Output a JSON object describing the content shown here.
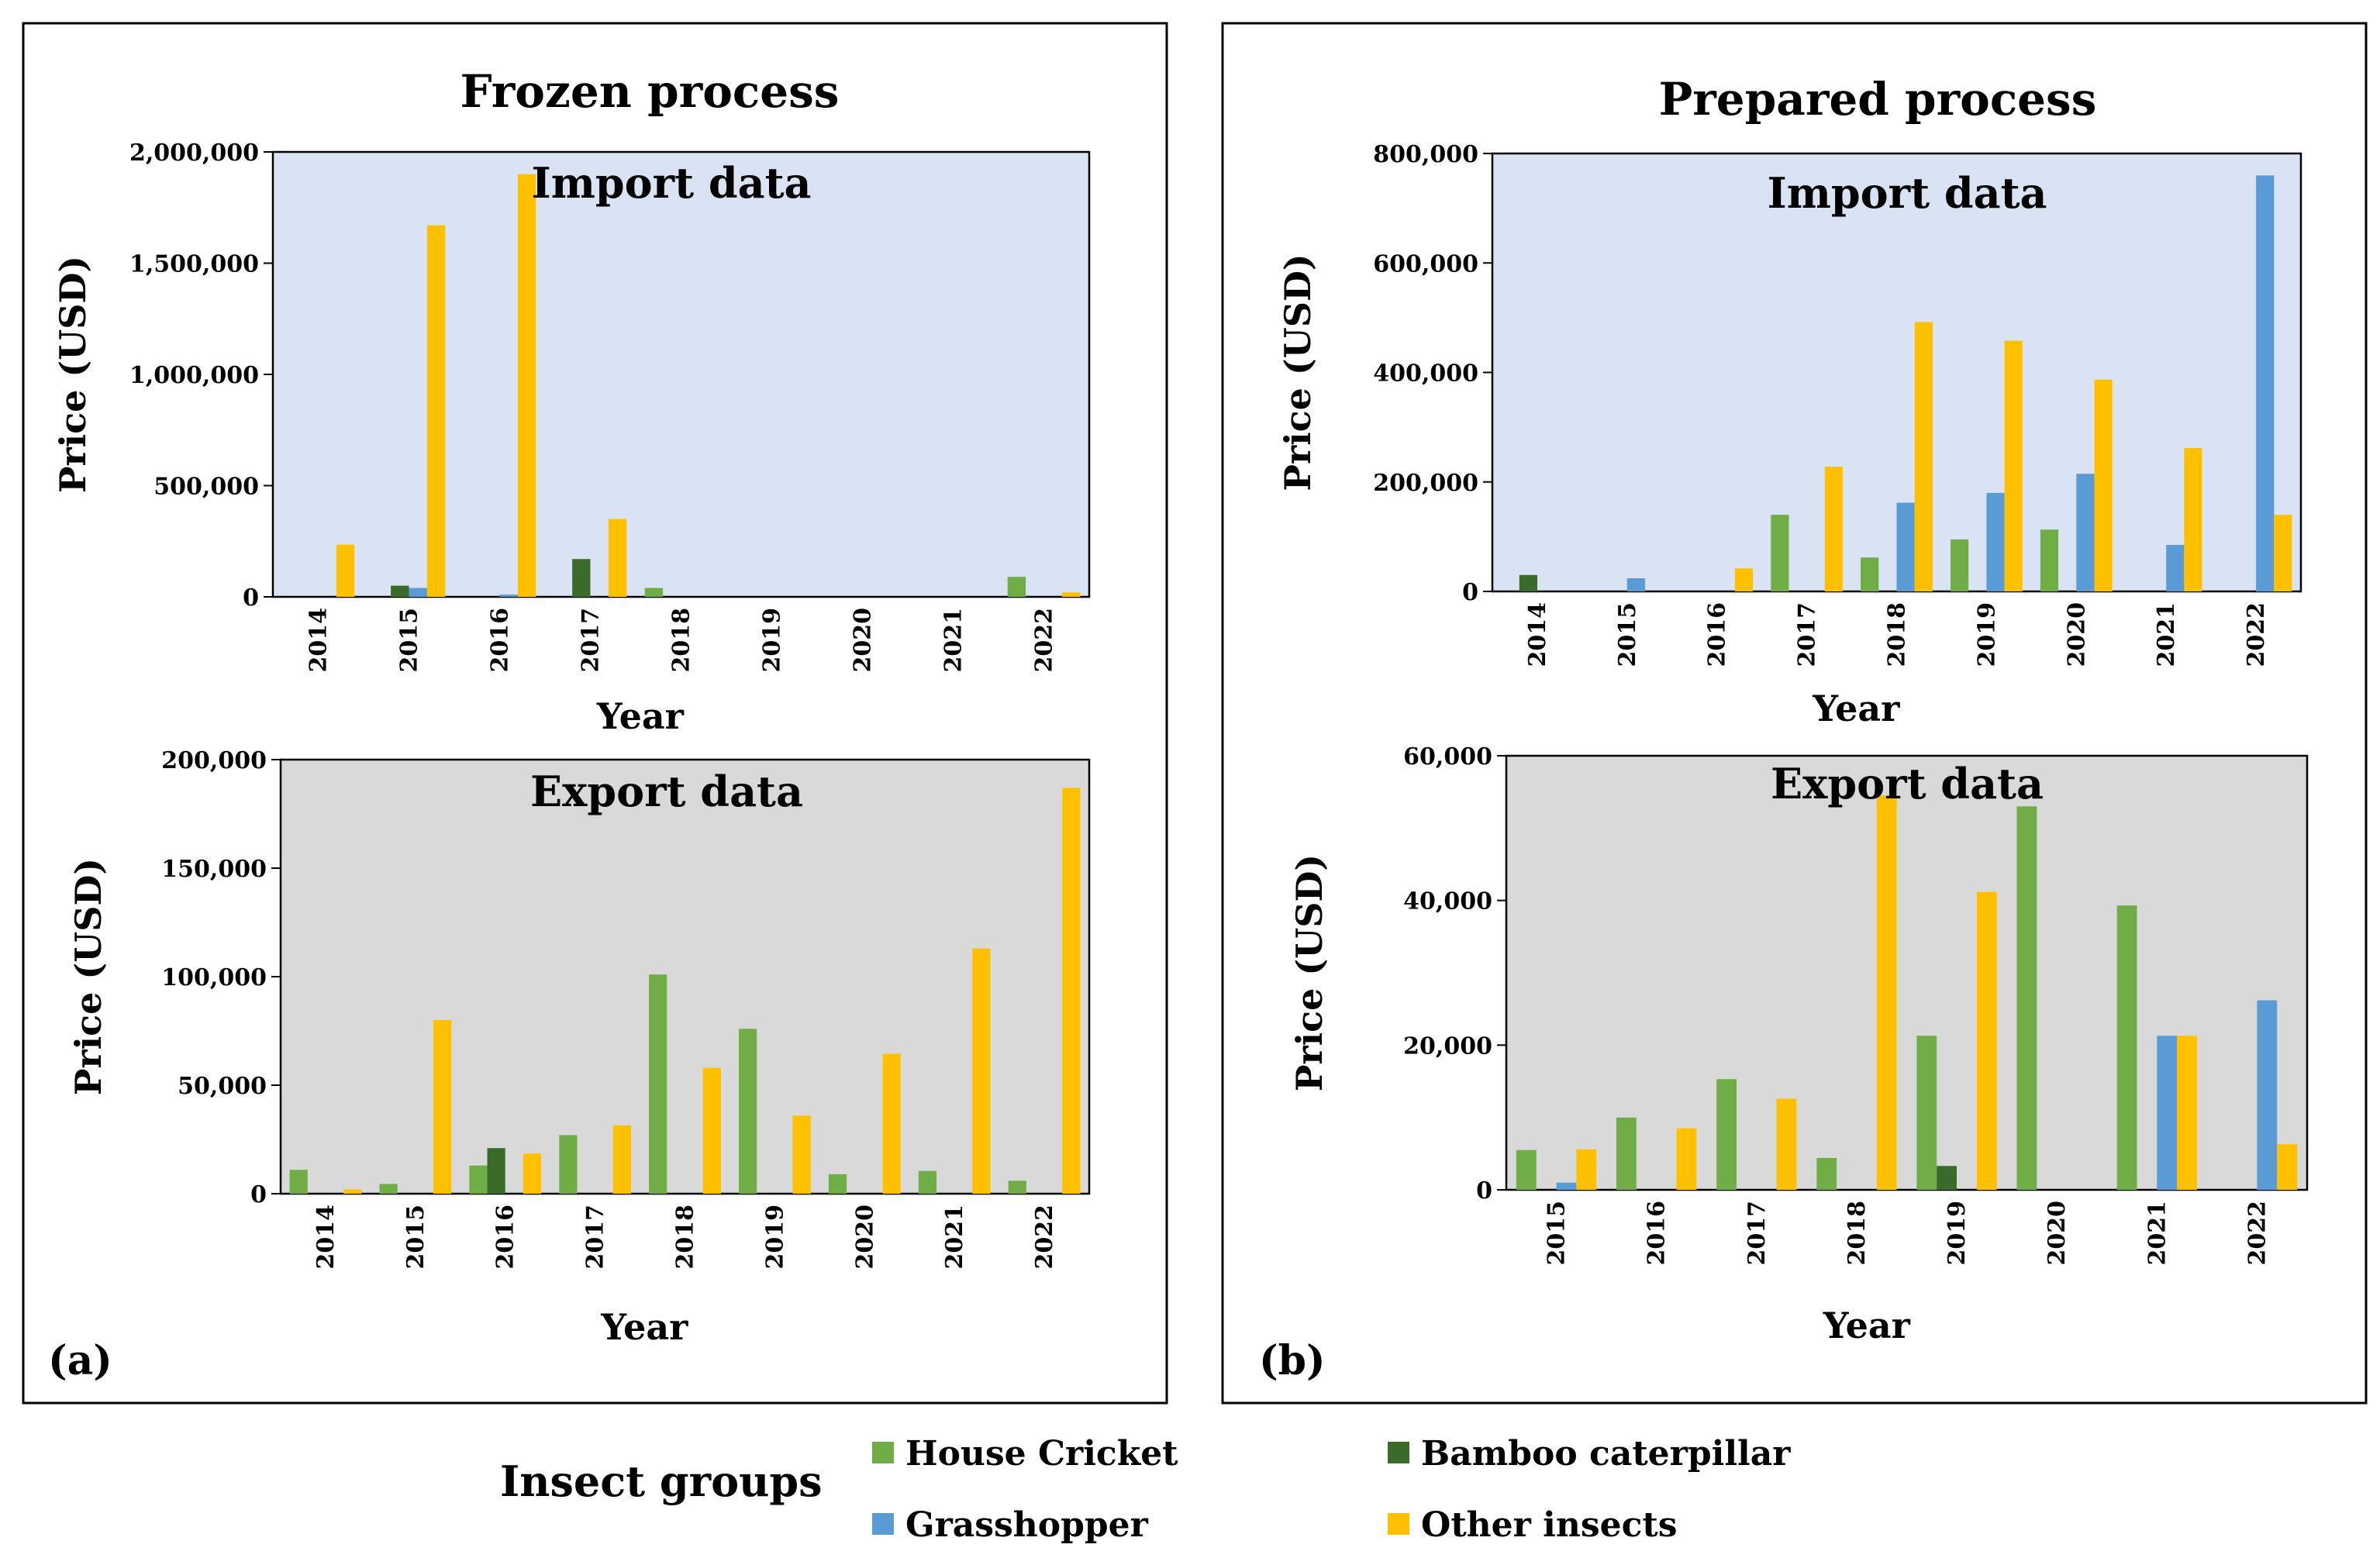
{
  "figure": {
    "panel_a": {
      "title": "Frozen process",
      "label": "(a)"
    },
    "panel_b": {
      "title": "Prepared process",
      "label": "(b)"
    },
    "legend": {
      "title": "Insect groups",
      "items": [
        {
          "key": "house_cricket",
          "label": "House Cricket",
          "color": "#70AD47"
        },
        {
          "key": "bamboo_caterpillar",
          "label": "Bamboo caterpillar",
          "color": "#3B6B2A"
        },
        {
          "key": "grasshopper",
          "label": "Grasshopper",
          "color": "#5B9BD5"
        },
        {
          "key": "other_insects",
          "label": "Other insects",
          "color": "#FFC000"
        }
      ]
    },
    "colors": {
      "import_bg": "#DAE3F3",
      "export_bg": "#D9D9D9"
    }
  },
  "chart_data": [
    {
      "id": "a-import",
      "type": "bar",
      "panel": "(a)",
      "title": "Import data",
      "xlabel": "Year",
      "ylabel": "Price (USD)",
      "ylim": [
        0,
        2000000
      ],
      "yticks": [
        0,
        500000,
        1000000,
        1500000,
        2000000
      ],
      "ytick_labels": [
        "0",
        "500,000",
        "1,000,000",
        "1,500,000",
        "2,000,000"
      ],
      "categories": [
        "2014",
        "2015",
        "2016",
        "2017",
        "2018",
        "2019",
        "2020",
        "2021",
        "2022"
      ],
      "series": [
        {
          "name": "House Cricket",
          "values": [
            0,
            0,
            0,
            0,
            40000,
            0,
            0,
            0,
            90000
          ]
        },
        {
          "name": "Bamboo caterpillar",
          "values": [
            0,
            50000,
            0,
            170000,
            0,
            0,
            0,
            0,
            0
          ]
        },
        {
          "name": "Grasshopper",
          "values": [
            0,
            40000,
            10000,
            0,
            0,
            0,
            0,
            0,
            0
          ]
        },
        {
          "name": "Other insects",
          "values": [
            235000,
            1670000,
            1900000,
            350000,
            0,
            0,
            0,
            0,
            20000
          ]
        }
      ]
    },
    {
      "id": "a-export",
      "type": "bar",
      "panel": "(a)",
      "title": "Export data",
      "xlabel": "Year",
      "ylabel": "Price (USD)",
      "ylim": [
        0,
        200000
      ],
      "yticks": [
        0,
        50000,
        100000,
        150000,
        200000
      ],
      "ytick_labels": [
        "0",
        "50,000",
        "100,000",
        "150,000",
        "200,000"
      ],
      "categories": [
        "2014",
        "2015",
        "2016",
        "2017",
        "2018",
        "2019",
        "2020",
        "2021",
        "2022"
      ],
      "series": [
        {
          "name": "House Cricket",
          "values": [
            11000,
            4500,
            13000,
            27000,
            101000,
            76000,
            9000,
            10500,
            6000
          ]
        },
        {
          "name": "Bamboo caterpillar",
          "values": [
            0,
            0,
            21000,
            0,
            0,
            0,
            0,
            0,
            0
          ]
        },
        {
          "name": "Grasshopper",
          "values": [
            0,
            0,
            0,
            0,
            0,
            0,
            0,
            0,
            0
          ]
        },
        {
          "name": "Other insects",
          "values": [
            2000,
            80000,
            18500,
            31500,
            58000,
            36000,
            64500,
            113000,
            187000
          ]
        }
      ]
    },
    {
      "id": "b-import",
      "type": "bar",
      "panel": "(b)",
      "title": "Import data",
      "xlabel": "Year",
      "ylabel": "Price (USD)",
      "ylim": [
        0,
        800000
      ],
      "yticks": [
        0,
        200000,
        400000,
        600000,
        800000
      ],
      "ytick_labels": [
        "0",
        "200,000",
        "400,000",
        "600,000",
        "800,000"
      ],
      "categories": [
        "2014",
        "2015",
        "2016",
        "2017",
        "2018",
        "2019",
        "2020",
        "2021",
        "2022"
      ],
      "series": [
        {
          "name": "House Cricket",
          "values": [
            0,
            0,
            0,
            140000,
            62000,
            95000,
            113000,
            0,
            0
          ]
        },
        {
          "name": "Bamboo caterpillar",
          "values": [
            30000,
            0,
            0,
            0,
            0,
            0,
            0,
            0,
            0
          ]
        },
        {
          "name": "Grasshopper",
          "values": [
            0,
            24000,
            0,
            0,
            162000,
            180000,
            215000,
            85000,
            760000
          ]
        },
        {
          "name": "Other insects",
          "values": [
            0,
            0,
            42000,
            228000,
            492000,
            458000,
            387000,
            262000,
            140000
          ]
        }
      ]
    },
    {
      "id": "b-export",
      "type": "bar",
      "panel": "(b)",
      "title": "Export data",
      "xlabel": "Year",
      "ylabel": "Price (USD)",
      "ylim": [
        0,
        60000
      ],
      "yticks": [
        0,
        20000,
        40000,
        60000
      ],
      "ytick_labels": [
        "0",
        "20,000",
        "40,000",
        "60,000"
      ],
      "categories": [
        "2015",
        "2016",
        "2017",
        "2018",
        "2019",
        "2020",
        "2021",
        "2022"
      ],
      "series": [
        {
          "name": "House Cricket",
          "values": [
            5500,
            10000,
            15300,
            4400,
            21300,
            53000,
            39300,
            0
          ]
        },
        {
          "name": "Bamboo caterpillar",
          "values": [
            0,
            0,
            0,
            0,
            3300,
            0,
            0,
            0
          ]
        },
        {
          "name": "Grasshopper",
          "values": [
            1000,
            0,
            0,
            0,
            0,
            0,
            21300,
            26200
          ]
        },
        {
          "name": "Other insects",
          "values": [
            5600,
            8500,
            12600,
            54500,
            41200,
            0,
            21300,
            6300
          ]
        }
      ]
    }
  ]
}
